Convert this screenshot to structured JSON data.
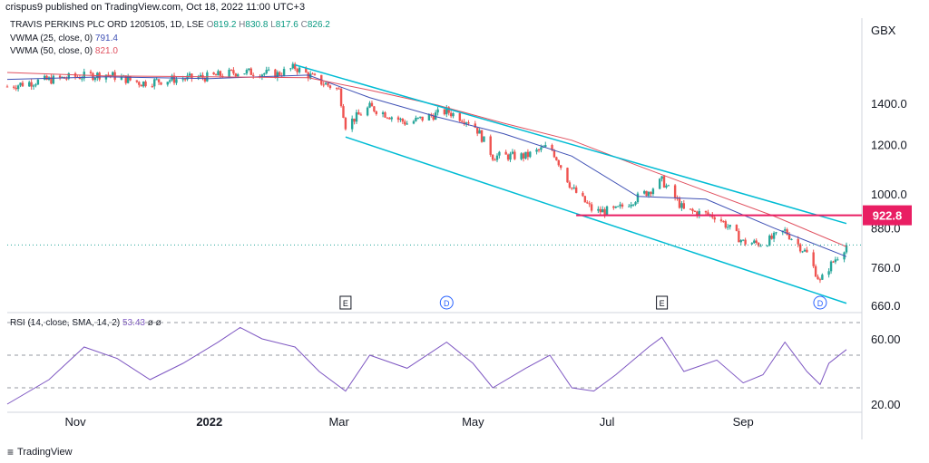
{
  "header": {
    "published_by": "crispus9 published on TradingView.com, Oct 18, 2022 11:00 UTC+3"
  },
  "legend": {
    "symbol": "TRAVIS PERKINS PLC ORD 1205105, 1D, LSE",
    "o_label": "O",
    "o": "819.2",
    "h_label": "H",
    "h": "830.8",
    "l_label": "L",
    "l": "817.6",
    "c_label": "C",
    "c": "826.2",
    "vwma25_label": "VWMA (25, close, 0)",
    "vwma25_value": "791.4",
    "vwma50_label": "VWMA (50, close, 0)",
    "vwma50_value": "821.0",
    "rsi_label": "RSI (14, close, SMA, 14, 2)",
    "rsi_value": "53.43",
    "rsi_extra": "ø ø"
  },
  "colors": {
    "up": "#26a69a",
    "down": "#ef5350",
    "vwma25": "#3f51b5",
    "vwma50": "#e0505f",
    "channel": "#00bcd4",
    "level": "#e91e63",
    "rsi": "#7e57c2"
  },
  "chart_data": [
    {
      "type": "candlestick",
      "currency": "GBX",
      "y_ticks": [
        "1400.0",
        "1200.0",
        "1000.0",
        "880.0",
        "760.0",
        "660.0"
      ],
      "y_tick_values": [
        1400,
        1200,
        1000,
        880,
        760,
        660
      ],
      "x_ticks": [
        "Nov",
        "2022",
        "Mar",
        "May",
        "Jul",
        "Sep"
      ],
      "x_tick_dates": [
        "2021-11-01",
        "2022-01-01",
        "2022-03-01",
        "2022-05-01",
        "2022-07-01",
        "2022-09-01"
      ],
      "x_range": [
        "2021-10-01",
        "2022-10-18"
      ],
      "scale": "log",
      "horizontal_level": {
        "value": 922.8,
        "label": "922.8",
        "from": "2022-06-17"
      },
      "channel": {
        "upper": [
          [
            "2022-02-09",
            1615
          ],
          [
            "2022-10-18",
            895
          ]
        ],
        "lower": [
          [
            "2022-03-04",
            1235
          ],
          [
            "2022-10-18",
            665
          ]
        ]
      },
      "markers": [
        {
          "label": "E",
          "date": "2022-03-04"
        },
        {
          "label": "D",
          "date": "2022-04-19"
        },
        {
          "label": "E",
          "date": "2022-07-26"
        },
        {
          "label": "D",
          "date": "2022-10-06"
        }
      ],
      "close_series_approx": [
        [
          "2021-10-01",
          1490
        ],
        [
          "2021-10-15",
          1520
        ],
        [
          "2021-11-01",
          1545
        ],
        [
          "2021-11-15",
          1560
        ],
        [
          "2021-12-01",
          1510
        ],
        [
          "2021-12-15",
          1530
        ],
        [
          "2022-01-01",
          1545
        ],
        [
          "2022-01-15",
          1575
        ],
        [
          "2022-02-01",
          1560
        ],
        [
          "2022-02-09",
          1600
        ],
        [
          "2022-02-20",
          1520
        ],
        [
          "2022-03-01",
          1470
        ],
        [
          "2022-03-04",
          1290
        ],
        [
          "2022-03-15",
          1380
        ],
        [
          "2022-04-01",
          1300
        ],
        [
          "2022-04-19",
          1360
        ],
        [
          "2022-05-01",
          1300
        ],
        [
          "2022-05-10",
          1150
        ],
        [
          "2022-05-25",
          1150
        ],
        [
          "2022-06-05",
          1195
        ],
        [
          "2022-06-15",
          1020
        ],
        [
          "2022-06-25",
          935
        ],
        [
          "2022-07-05",
          940
        ],
        [
          "2022-07-20",
          1010
        ],
        [
          "2022-07-26",
          1050
        ],
        [
          "2022-08-05",
          940
        ],
        [
          "2022-08-20",
          920
        ],
        [
          "2022-09-01",
          835
        ],
        [
          "2022-09-10",
          830
        ],
        [
          "2022-09-20",
          870
        ],
        [
          "2022-09-30",
          800
        ],
        [
          "2022-10-06",
          720
        ],
        [
          "2022-10-10",
          760
        ],
        [
          "2022-10-18",
          826
        ]
      ],
      "vwma25_approx": [
        [
          "2021-10-01",
          1530
        ],
        [
          "2021-11-15",
          1545
        ],
        [
          "2022-01-01",
          1535
        ],
        [
          "2022-02-15",
          1555
        ],
        [
          "2022-03-15",
          1430
        ],
        [
          "2022-04-15",
          1330
        ],
        [
          "2022-05-15",
          1250
        ],
        [
          "2022-06-15",
          1150
        ],
        [
          "2022-07-15",
          990
        ],
        [
          "2022-08-15",
          980
        ],
        [
          "2022-09-15",
          880
        ],
        [
          "2022-10-18",
          791.4
        ]
      ],
      "vwma50_approx": [
        [
          "2021-10-01",
          1570
        ],
        [
          "2021-11-15",
          1550
        ],
        [
          "2022-01-01",
          1545
        ],
        [
          "2022-02-15",
          1540
        ],
        [
          "2022-03-15",
          1470
        ],
        [
          "2022-04-15",
          1390
        ],
        [
          "2022-05-15",
          1300
        ],
        [
          "2022-06-15",
          1220
        ],
        [
          "2022-07-15",
          1110
        ],
        [
          "2022-08-15",
          1010
        ],
        [
          "2022-09-15",
          920
        ],
        [
          "2022-10-18",
          821.0
        ]
      ]
    },
    {
      "type": "line",
      "name": "RSI (14, close, SMA, 14, 2)",
      "y_ticks": [
        "60.00",
        "20.00"
      ],
      "y_tick_values": [
        60,
        20
      ],
      "bands": [
        70,
        50,
        30
      ],
      "ylim": [
        15,
        75
      ],
      "series_approx": [
        [
          "2021-10-01",
          20
        ],
        [
          "2021-10-20",
          35
        ],
        [
          "2021-11-05",
          55
        ],
        [
          "2021-11-20",
          48
        ],
        [
          "2021-12-05",
          35
        ],
        [
          "2021-12-20",
          45
        ],
        [
          "2022-01-05",
          58
        ],
        [
          "2022-01-15",
          67
        ],
        [
          "2022-01-25",
          60
        ],
        [
          "2022-02-09",
          55
        ],
        [
          "2022-02-20",
          40
        ],
        [
          "2022-03-04",
          28
        ],
        [
          "2022-03-15",
          50
        ],
        [
          "2022-04-01",
          42
        ],
        [
          "2022-04-19",
          58
        ],
        [
          "2022-05-01",
          45
        ],
        [
          "2022-05-10",
          30
        ],
        [
          "2022-05-25",
          42
        ],
        [
          "2022-06-05",
          50
        ],
        [
          "2022-06-15",
          30
        ],
        [
          "2022-06-25",
          28
        ],
        [
          "2022-07-05",
          38
        ],
        [
          "2022-07-20",
          55
        ],
        [
          "2022-07-26",
          61
        ],
        [
          "2022-08-05",
          40
        ],
        [
          "2022-08-20",
          47
        ],
        [
          "2022-09-01",
          33
        ],
        [
          "2022-09-10",
          38
        ],
        [
          "2022-09-20",
          58
        ],
        [
          "2022-09-30",
          40
        ],
        [
          "2022-10-06",
          32
        ],
        [
          "2022-10-10",
          45
        ],
        [
          "2022-10-18",
          53.43
        ]
      ]
    }
  ],
  "footer": {
    "brand": "TradingView"
  }
}
